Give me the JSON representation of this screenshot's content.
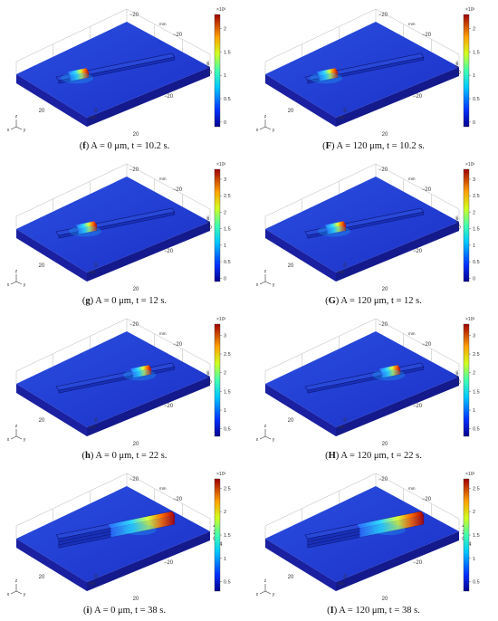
{
  "figure": {
    "panels": [
      {
        "letter": "f",
        "caption_text": " A = 0 μm, t = 10.2 s.",
        "colorbar": {
          "exponent": "×10³",
          "ticks": [
            "2",
            "1.5",
            "1",
            "0.5",
            "0"
          ],
          "max": 2.3,
          "min": -0.1
        },
        "axis_labels": {
          "t1": "−20",
          "t2": "−20",
          "t3": "0",
          "t4": "−4",
          "t5": "20",
          "t6": "0",
          "t7": "20"
        },
        "units": "mm",
        "track_progress": 0.18,
        "deposit_layers": 1,
        "triad": {
          "z": "z",
          "x": "x",
          "y": "y"
        }
      },
      {
        "letter": "F",
        "caption_text": " A = 120 μm, t = 10.2 s.",
        "colorbar": {
          "exponent": "×10³",
          "ticks": [
            "2",
            "1.5",
            "1",
            "0.5",
            "0"
          ],
          "max": 2.3,
          "min": -0.1
        },
        "axis_labels": {
          "t1": "−20",
          "t2": "−20",
          "t3": "0",
          "t4": "−4",
          "t5": "20",
          "t6": "0",
          "t7": "20"
        },
        "units": "mm",
        "track_progress": 0.18,
        "deposit_layers": 1,
        "triad": {
          "z": "z",
          "x": "x",
          "y": "y"
        }
      },
      {
        "letter": "g",
        "caption_text": " A = 0 μm, t = 12 s.",
        "colorbar": {
          "exponent": "×10³",
          "ticks": [
            "3",
            "2.5",
            "2",
            "1.5",
            "1",
            "0.5",
            "0"
          ],
          "max": 3.3,
          "min": -0.1
        },
        "axis_labels": {
          "t1": "−20",
          "t2": "−20",
          "t3": "0",
          "t4": "−4",
          "t5": "20",
          "t6": "0",
          "t7": "20"
        },
        "units": "mm",
        "track_progress": 0.25,
        "deposit_layers": 1,
        "triad": {
          "z": "z",
          "x": "x",
          "y": "y"
        }
      },
      {
        "letter": "G",
        "caption_text": " A = 120 μm, t = 12 s.",
        "colorbar": {
          "exponent": "×10³",
          "ticks": [
            "3",
            "2.5",
            "2",
            "1.5",
            "1",
            "0.5",
            "0"
          ],
          "max": 3.3,
          "min": -0.1
        },
        "axis_labels": {
          "t1": "−20",
          "t2": "−20",
          "t3": "0",
          "t4": "−4",
          "t5": "20",
          "t6": "0",
          "t7": "20"
        },
        "units": "mm",
        "track_progress": 0.25,
        "deposit_layers": 1,
        "triad": {
          "z": "z",
          "x": "x",
          "y": "y"
        }
      },
      {
        "letter": "h",
        "caption_text": " A = 0 μm, t = 22 s.",
        "colorbar": {
          "exponent": "×10³",
          "ticks": [
            "3",
            "2.5",
            "2",
            "1.5",
            "1",
            "0.5"
          ],
          "max": 3.3,
          "min": 0.3
        },
        "axis_labels": {
          "t1": "−20",
          "t2": "−20",
          "t3": "0",
          "t4": "−4",
          "t5": "20",
          "t6": "0",
          "t7": "20"
        },
        "units": "mm",
        "track_progress": 0.72,
        "deposit_layers": 1,
        "triad": {
          "z": "z",
          "x": "x",
          "y": "y"
        }
      },
      {
        "letter": "H",
        "caption_text": " A = 120 μm, t = 22 s.",
        "colorbar": {
          "exponent": "×10³",
          "ticks": [
            "3",
            "2.5",
            "2",
            "1.5",
            "1",
            "0.5"
          ],
          "max": 3.3,
          "min": 0.3
        },
        "axis_labels": {
          "t1": "−20",
          "t2": "−20",
          "t3": "0",
          "t4": "−4",
          "t5": "20",
          "t6": "0",
          "t7": "20"
        },
        "units": "mm",
        "track_progress": 0.72,
        "deposit_layers": 1,
        "triad": {
          "z": "z",
          "x": "x",
          "y": "y"
        }
      },
      {
        "letter": "i",
        "caption_text": " A = 0 μm, t = 38 s.",
        "colorbar": {
          "exponent": "×10³",
          "ticks": [
            "2.5",
            "2",
            "1.5",
            "1",
            "0.5"
          ],
          "max": 2.7,
          "min": 0.3
        },
        "axis_labels": {
          "t1": "−20",
          "t2": "−20",
          "t3": "4",
          "t4": "2",
          "t5": "0",
          "t6": "−4",
          "t7": "20",
          "t8": "0",
          "t9": "20"
        },
        "units": "mm",
        "track_progress": 0.55,
        "deposit_layers": 3,
        "triad": {
          "z": "z",
          "x": "x",
          "y": "y"
        }
      },
      {
        "letter": "I",
        "caption_text": " A = 120 μm, t = 38 s.",
        "colorbar": {
          "exponent": "×10³",
          "ticks": [
            "2.5",
            "2",
            "1.5",
            "1",
            "0.5"
          ],
          "max": 2.7,
          "min": 0.3
        },
        "axis_labels": {
          "t1": "−20",
          "t2": "−20",
          "t3": "4",
          "t4": "2",
          "t5": "0",
          "t6": "−4",
          "t7": "20",
          "t8": "0",
          "t9": "20"
        },
        "units": "mm",
        "track_progress": 0.55,
        "deposit_layers": 3,
        "triad": {
          "z": "z",
          "x": "x",
          "y": "y"
        }
      }
    ]
  }
}
